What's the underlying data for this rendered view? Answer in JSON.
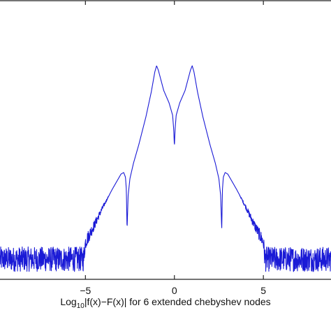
{
  "chart_data": {
    "type": "line",
    "title": "",
    "xlabel": "Log10|f(x)−F(x)| for 6 extended chebyshev nodes",
    "ylabel": "",
    "xlim": [
      -9.8,
      8.8
    ],
    "ylim": [
      -17,
      1
    ],
    "x_ticks": [
      -5,
      0,
      5
    ],
    "x_tick_labels": [
      "−5",
      "0",
      "5"
    ],
    "grid": false,
    "series": [
      {
        "color": "#1a1ad6",
        "x": [
          -9.8,
          -5.1,
          -5.0,
          -4.5,
          -4.0,
          -3.5,
          -3.0,
          -2.85,
          -2.75,
          -2.7,
          -2.68,
          -2.66,
          -2.6,
          -2.5,
          -2.3,
          -2.0,
          -1.6,
          -1.3,
          -1.1,
          -1.0,
          -0.9,
          -0.6,
          -0.3,
          -0.1,
          -0.04,
          0.0,
          0.04,
          0.1,
          0.3,
          0.6,
          0.9,
          1.0,
          1.1,
          1.3,
          1.6,
          2.0,
          2.3,
          2.5,
          2.6,
          2.66,
          2.68,
          2.7,
          2.75,
          2.85,
          3.0,
          3.5,
          4.0,
          4.5,
          5.0,
          5.1,
          8.8
        ],
        "y": [
          -15.7,
          -15.7,
          -14.6,
          -13.5,
          -12.3,
          -11.2,
          -10.2,
          -10.1,
          -10.4,
          -11.2,
          -12.5,
          -13.8,
          -11.6,
          -10.5,
          -9.5,
          -8.3,
          -6.5,
          -4.9,
          -3.6,
          -3.2,
          -3.5,
          -4.8,
          -5.6,
          -6.4,
          -7.3,
          -8.4,
          -7.3,
          -6.4,
          -5.6,
          -4.8,
          -3.5,
          -3.2,
          -3.6,
          -4.9,
          -6.5,
          -8.3,
          -9.5,
          -10.5,
          -11.6,
          -13.8,
          -12.5,
          -11.2,
          -10.4,
          -10.1,
          -10.2,
          -11.2,
          -12.3,
          -13.5,
          -14.6,
          -15.7,
          -15.7
        ],
        "noise_floor": -15.7
      }
    ]
  }
}
